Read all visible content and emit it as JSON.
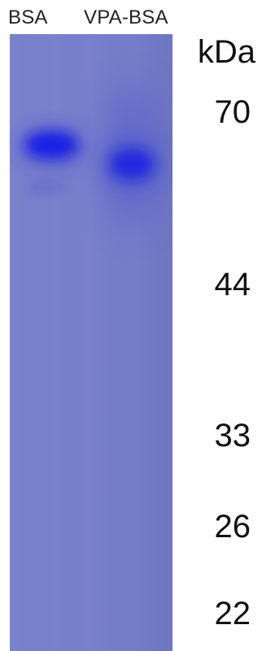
{
  "lanes": [
    "BSA",
    "VPA-BSA"
  ],
  "unit_label": "kDa",
  "markers": [
    "70",
    "44",
    "33",
    "26",
    "22"
  ],
  "colors": {
    "gel_background": "#7880cc",
    "band": "#1a22e0"
  }
}
